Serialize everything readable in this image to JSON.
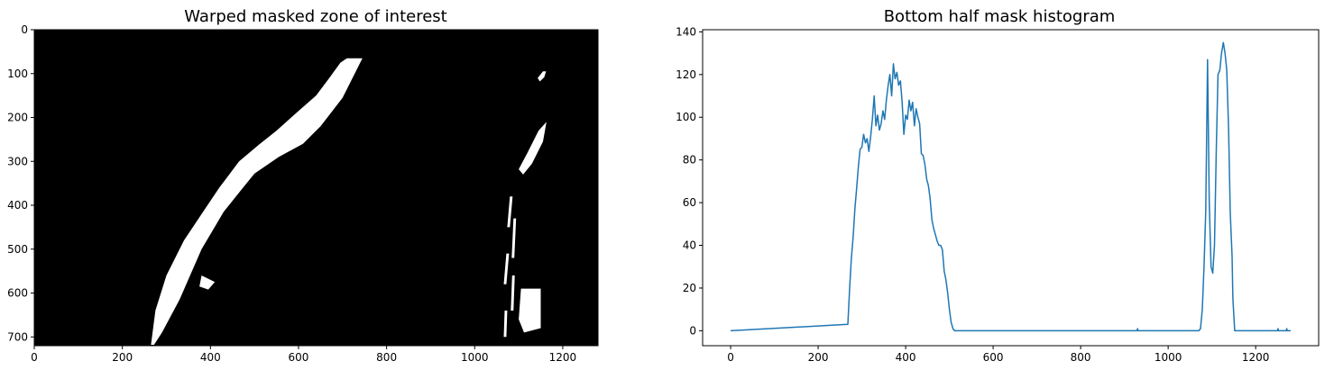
{
  "chart_data": [
    {
      "type": "image",
      "title": "Warped masked zone of interest",
      "xlabel": "",
      "ylabel": "",
      "xlim": [
        0,
        1280
      ],
      "ylim": [
        720,
        0
      ],
      "xticks": [
        0,
        200,
        400,
        600,
        800,
        1000,
        1200
      ],
      "yticks": [
        0,
        100,
        200,
        300,
        400,
        500,
        600,
        700
      ],
      "background": "#000000",
      "foreground": "#ffffff",
      "white_regions": [
        {
          "name": "left-lane-band",
          "points": [
            [
              272,
              718
            ],
            [
              290,
              690
            ],
            [
              330,
              615
            ],
            [
              380,
              500
            ],
            [
              430,
              415
            ],
            [
              470,
              365
            ],
            [
              500,
              328
            ],
            [
              555,
              290
            ],
            [
              610,
              260
            ],
            [
              650,
              220
            ],
            [
              700,
              155
            ],
            [
              745,
              65
            ],
            [
              710,
              65
            ],
            [
              695,
              75
            ],
            [
              670,
              110
            ],
            [
              640,
              150
            ],
            [
              600,
              185
            ],
            [
              550,
              230
            ],
            [
              510,
              262
            ],
            [
              465,
              300
            ],
            [
              420,
              360
            ],
            [
              380,
              420
            ],
            [
              340,
              480
            ],
            [
              300,
              560
            ],
            [
              275,
              640
            ],
            [
              265,
              718
            ]
          ]
        },
        {
          "name": "left-lane-blob",
          "points": [
            [
              380,
              560
            ],
            [
              410,
              575
            ],
            [
              395,
              592
            ],
            [
              375,
              585
            ]
          ]
        },
        {
          "name": "right-lane-dash-top",
          "points": [
            [
              1162,
              95
            ],
            [
              1158,
              108
            ],
            [
              1148,
              118
            ],
            [
              1143,
              110
            ],
            [
              1155,
              95
            ]
          ]
        },
        {
          "name": "right-lane-band-upper",
          "points": [
            [
              1163,
              210
            ],
            [
              1155,
              255
            ],
            [
              1130,
              305
            ],
            [
              1110,
              330
            ],
            [
              1100,
              318
            ],
            [
              1120,
              280
            ],
            [
              1145,
              230
            ]
          ]
        },
        {
          "name": "right-lane-band-lower",
          "points": [
            [
              1105,
              590
            ],
            [
              1150,
              590
            ],
            [
              1150,
              680
            ],
            [
              1112,
              690
            ],
            [
              1100,
              660
            ]
          ]
        },
        {
          "name": "right-lane-speckle-1",
          "points": [
            [
              1080,
              380
            ],
            [
              1086,
              380
            ],
            [
              1080,
              450
            ],
            [
              1074,
              450
            ]
          ]
        },
        {
          "name": "right-lane-speckle-2",
          "points": [
            [
              1072,
              510
            ],
            [
              1078,
              510
            ],
            [
              1072,
              580
            ],
            [
              1066,
              580
            ]
          ]
        },
        {
          "name": "right-lane-speckle-3",
          "points": [
            [
              1068,
              640
            ],
            [
              1074,
              640
            ],
            [
              1072,
              700
            ],
            [
              1066,
              700
            ]
          ]
        },
        {
          "name": "right-lane-speckle-4",
          "points": [
            [
              1088,
              430
            ],
            [
              1094,
              430
            ],
            [
              1090,
              520
            ],
            [
              1084,
              520
            ]
          ]
        },
        {
          "name": "right-lane-speckle-5",
          "points": [
            [
              1085,
              560
            ],
            [
              1091,
              560
            ],
            [
              1088,
              640
            ],
            [
              1082,
              640
            ]
          ]
        }
      ]
    },
    {
      "type": "line",
      "title": "Bottom half mask histogram",
      "xlabel": "",
      "ylabel": "",
      "xlim": [
        -64,
        1344
      ],
      "ylim": [
        -7,
        141
      ],
      "xticks": [
        0,
        200,
        400,
        600,
        800,
        1000,
        1200
      ],
      "yticks": [
        0,
        20,
        40,
        60,
        80,
        100,
        120,
        140
      ],
      "series": [
        {
          "name": "histogram",
          "color": "#1f77b4",
          "x": [
            0,
            268,
            272,
            276,
            280,
            284,
            288,
            292,
            296,
            300,
            304,
            308,
            312,
            316,
            320,
            324,
            328,
            332,
            336,
            340,
            344,
            348,
            352,
            356,
            360,
            364,
            368,
            372,
            376,
            380,
            384,
            388,
            392,
            396,
            400,
            404,
            408,
            412,
            416,
            420,
            424,
            428,
            432,
            436,
            440,
            444,
            448,
            452,
            456,
            460,
            464,
            468,
            472,
            476,
            480,
            484,
            488,
            492,
            496,
            500,
            504,
            508,
            512,
            516,
            520,
            524,
            528,
            532,
            536,
            540,
            929,
            930,
            931,
            1070,
            1074,
            1078,
            1082,
            1086,
            1090,
            1094,
            1098,
            1102,
            1106,
            1110,
            1114,
            1118,
            1122,
            1126,
            1130,
            1134,
            1138,
            1142,
            1146,
            1148,
            1152,
            1250,
            1251,
            1252,
            1270,
            1271,
            1272,
            1280
          ],
          "y": [
            0,
            3,
            20,
            34,
            44,
            57,
            67,
            77,
            85,
            86,
            92,
            88,
            90,
            84,
            91,
            99,
            110,
            96,
            101,
            94,
            97,
            103,
            99,
            108,
            115,
            120,
            110,
            125,
            118,
            121,
            115,
            117,
            107,
            92,
            101,
            99,
            108,
            103,
            107,
            96,
            104,
            100,
            97,
            83,
            82,
            78,
            71,
            68,
            62,
            52,
            48,
            45,
            42,
            40,
            40,
            38,
            28,
            24,
            18,
            10,
            4,
            1,
            0,
            0,
            0,
            0,
            0,
            0,
            0,
            0,
            0,
            1,
            0,
            0,
            1,
            10,
            30,
            56,
            127,
            60,
            30,
            27,
            40,
            85,
            120,
            122,
            130,
            135,
            130,
            122,
            95,
            55,
            35,
            15,
            0,
            0,
            1,
            0,
            0,
            1,
            0,
            0
          ]
        }
      ]
    }
  ]
}
